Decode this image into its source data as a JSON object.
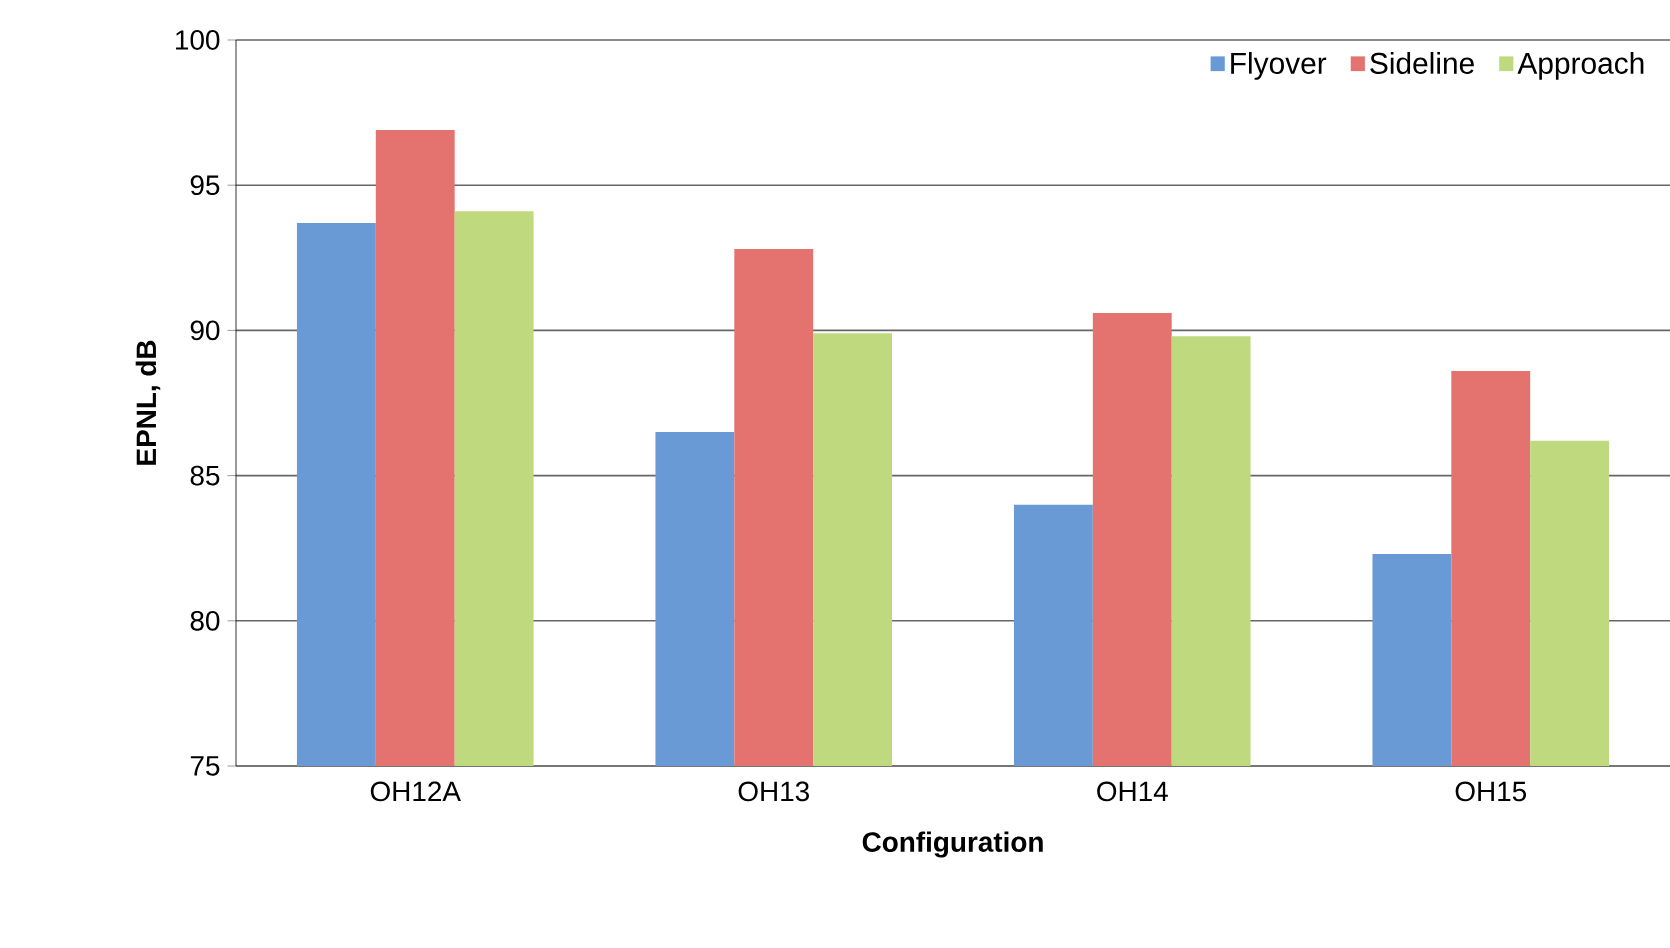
{
  "chart_data": {
    "type": "bar",
    "xlabel": "Configuration",
    "ylabel": "EPNL, dB",
    "categories": [
      "OH12A",
      "OH13",
      "OH14",
      "OH15"
    ],
    "series": [
      {
        "name": "Flyover",
        "color": "#6a9ad6",
        "values": [
          93.7,
          86.5,
          84.0,
          82.3
        ]
      },
      {
        "name": "Sideline",
        "color": "#e4736f",
        "values": [
          96.9,
          92.8,
          90.6,
          88.6
        ]
      },
      {
        "name": "Approach",
        "color": "#bfd97f",
        "values": [
          94.1,
          89.9,
          89.8,
          86.2
        ]
      }
    ],
    "ylim": [
      75,
      100
    ],
    "yticks": [
      75,
      80,
      85,
      90,
      95,
      100
    ],
    "grid": "y",
    "legend": "top right"
  }
}
